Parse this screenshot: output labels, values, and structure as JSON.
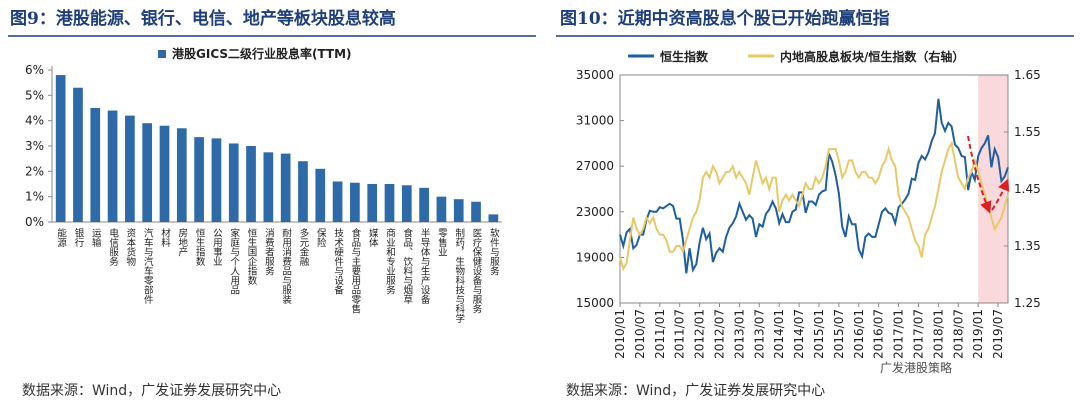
{
  "chart_data": [
    {
      "type": "bar",
      "title": "图9：港股能源、银行、电信、地产等板块股息较高",
      "categories": [
        "能源",
        "银行",
        "运输",
        "电信服务",
        "资本货物",
        "汽车与汽车零部件",
        "材料",
        "房地产",
        "恒生指数",
        "公用事业",
        "家庭与个人用品",
        "恒生国企指数",
        "消费者服务",
        "耐用消费品与服装",
        "多元金融",
        "保险",
        "技术硬件与设备",
        "食品与主要用品零售",
        "媒体",
        "商业和专业服务",
        "食品、饮料与烟草",
        "半导体与生产设备",
        "零售业",
        "制药，生物科技与科学",
        "医疗保健设备与服务",
        "软件与服务"
      ],
      "series": [
        {
          "name": "港股GICS二级行业股息率(TTM)",
          "color": "#2e6aa8",
          "values": [
            5.8,
            5.3,
            4.5,
            4.4,
            4.2,
            3.9,
            3.8,
            3.7,
            3.35,
            3.3,
            3.1,
            3.0,
            2.75,
            2.7,
            2.4,
            2.1,
            1.6,
            1.55,
            1.5,
            1.5,
            1.45,
            1.35,
            1.0,
            0.9,
            0.8,
            0.3
          ]
        }
      ],
      "ylim": [
        0,
        6
      ],
      "yticks": [
        {
          "value": 0,
          "label": "0%"
        },
        {
          "value": 1,
          "label": "1%"
        },
        {
          "value": 2,
          "label": "2%"
        },
        {
          "value": 3,
          "label": "3%"
        },
        {
          "value": 4,
          "label": "4%"
        },
        {
          "value": 5,
          "label": "5%"
        },
        {
          "value": 6,
          "label": "6%"
        }
      ],
      "source": "数据来源：Wind，广发证券发展研究中心"
    },
    {
      "type": "line",
      "title": "图10：近期中资高股息个股已开始跑赢恒指",
      "x": [
        "2010/01",
        "2010/02",
        "2010/03",
        "2010/04",
        "2010/05",
        "2010/06",
        "2010/07",
        "2010/08",
        "2010/09",
        "2010/10",
        "2010/11",
        "2010/12",
        "2011/01",
        "2011/02",
        "2011/03",
        "2011/04",
        "2011/05",
        "2011/06",
        "2011/07",
        "2011/08",
        "2011/09",
        "2011/10",
        "2011/11",
        "2011/12",
        "2012/01",
        "2012/02",
        "2012/03",
        "2012/04",
        "2012/05",
        "2012/06",
        "2012/07",
        "2012/08",
        "2012/09",
        "2012/10",
        "2012/11",
        "2012/12",
        "2013/01",
        "2013/02",
        "2013/03",
        "2013/04",
        "2013/05",
        "2013/06",
        "2013/07",
        "2013/08",
        "2013/09",
        "2013/10",
        "2013/11",
        "2013/12",
        "2014/01",
        "2014/02",
        "2014/03",
        "2014/04",
        "2014/05",
        "2014/06",
        "2014/07",
        "2014/08",
        "2014/09",
        "2014/10",
        "2014/11",
        "2014/12",
        "2015/01",
        "2015/02",
        "2015/03",
        "2015/04",
        "2015/05",
        "2015/06",
        "2015/07",
        "2015/08",
        "2015/09",
        "2015/10",
        "2015/11",
        "2015/12",
        "2016/01",
        "2016/02",
        "2016/03",
        "2016/04",
        "2016/05",
        "2016/06",
        "2016/07",
        "2016/08",
        "2016/09",
        "2016/10",
        "2016/11",
        "2016/12",
        "2017/01",
        "2017/02",
        "2017/03",
        "2017/04",
        "2017/05",
        "2017/06",
        "2017/07",
        "2017/08",
        "2017/09",
        "2017/10",
        "2017/11",
        "2017/12",
        "2018/01",
        "2018/02",
        "2018/03",
        "2018/04",
        "2018/05",
        "2018/06",
        "2018/07",
        "2018/08",
        "2018/09",
        "2018/10",
        "2018/11",
        "2018/12",
        "2019/01",
        "2019/02",
        "2019/03",
        "2019/04",
        "2019/05",
        "2019/06",
        "2019/07",
        "2019/08",
        "2019/09",
        "2019/10"
      ],
      "xticks": [
        "2010/01",
        "2010/07",
        "2011/01",
        "2011/07",
        "2012/01",
        "2012/07",
        "2013/01",
        "2013/07",
        "2014/01",
        "2014/07",
        "2015/01",
        "2015/07",
        "2016/01",
        "2016/07",
        "2017/01",
        "2017/07",
        "2018/01",
        "2018/07",
        "2019/01",
        "2019/07"
      ],
      "series": [
        {
          "name": "恒生指数",
          "color": "#1f5fa0",
          "values": [
            21000,
            20000,
            21200,
            21500,
            19800,
            20100,
            21000,
            21000,
            22300,
            23100,
            23000,
            23000,
            23400,
            23300,
            23500,
            23700,
            23500,
            22400,
            22400,
            20500,
            17600,
            19800,
            17900,
            18400,
            20300,
            21600,
            20600,
            21100,
            18600,
            19400,
            19800,
            19500,
            20800,
            21600,
            22000,
            22600,
            23700,
            23000,
            22300,
            22700,
            22400,
            20800,
            21900,
            21700,
            22800,
            23200,
            23900,
            23300,
            22000,
            22800,
            22100,
            22100,
            23000,
            23200,
            24700,
            24700,
            22900,
            23900,
            23900,
            23600,
            24500,
            24800,
            24900,
            28100,
            27400,
            26200,
            24600,
            21700,
            20800,
            22600,
            21900,
            21900,
            19700,
            19100,
            20800,
            21100,
            20800,
            20800,
            21900,
            23000,
            23300,
            22900,
            22800,
            22000,
            23400,
            23700,
            24100,
            24600,
            25900,
            25800,
            27300,
            27900,
            27600,
            28200,
            29200,
            29900,
            32900,
            30800,
            30100,
            30800,
            30500,
            28900,
            28600,
            27900,
            27800,
            24900,
            26500,
            25800,
            27900,
            28600,
            29000,
            29700,
            26900,
            28500,
            27800,
            25700,
            26100,
            26900
          ]
        },
        {
          "name": "内地高股息板块/恒生指数（右轴）",
          "color": "#e8c96a",
          "axis": "y2",
          "values": [
            1.33,
            1.31,
            1.32,
            1.36,
            1.4,
            1.38,
            1.37,
            1.38,
            1.4,
            1.39,
            1.4,
            1.38,
            1.37,
            1.37,
            1.36,
            1.34,
            1.34,
            1.35,
            1.35,
            1.34,
            1.36,
            1.38,
            1.4,
            1.41,
            1.43,
            1.47,
            1.48,
            1.47,
            1.49,
            1.48,
            1.46,
            1.47,
            1.48,
            1.48,
            1.49,
            1.47,
            1.48,
            1.47,
            1.46,
            1.44,
            1.47,
            1.5,
            1.48,
            1.46,
            1.47,
            1.45,
            1.47,
            1.47,
            1.41,
            1.43,
            1.44,
            1.43,
            1.44,
            1.43,
            1.42,
            1.44,
            1.46,
            1.45,
            1.45,
            1.47,
            1.46,
            1.47,
            1.49,
            1.52,
            1.52,
            1.52,
            1.5,
            1.47,
            1.48,
            1.5,
            1.5,
            1.48,
            1.47,
            1.48,
            1.48,
            1.47,
            1.47,
            1.46,
            1.47,
            1.49,
            1.5,
            1.52,
            1.5,
            1.49,
            1.44,
            1.42,
            1.41,
            1.4,
            1.38,
            1.36,
            1.35,
            1.33,
            1.37,
            1.38,
            1.4,
            1.42,
            1.45,
            1.48,
            1.5,
            1.52,
            1.53,
            1.5,
            1.47,
            1.46,
            1.45,
            1.47,
            1.48,
            1.5,
            1.48,
            1.46,
            1.44,
            1.42,
            1.4,
            1.38,
            1.39,
            1.4,
            1.42,
            1.44
          ]
        }
      ],
      "ylim": [
        15000,
        35000
      ],
      "yticks": [
        15000,
        19000,
        23000,
        27000,
        31000,
        35000
      ],
      "y2lim": [
        1.25,
        1.65
      ],
      "y2ticks": [
        1.25,
        1.35,
        1.45,
        1.55,
        1.65
      ],
      "highlight": {
        "from": "2019/01",
        "color": "#f9d9dc"
      },
      "source": "数据来源：Wind，广发证券发展研究中心",
      "watermark": "广发港股策略"
    }
  ]
}
